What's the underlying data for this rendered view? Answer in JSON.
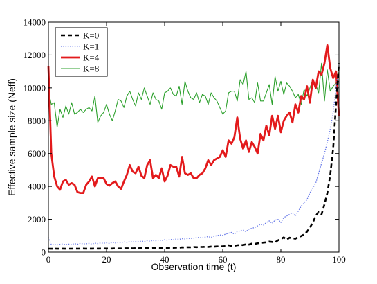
{
  "chart_data": {
    "type": "line",
    "title": "",
    "xlabel": "Observation time (t)",
    "ylabel": "Effective sample size (Neff)",
    "xlim": [
      0,
      100
    ],
    "ylim": [
      0,
      14000
    ],
    "x_ticks": [
      0,
      20,
      40,
      60,
      80,
      100
    ],
    "y_ticks": [
      0,
      2000,
      4000,
      6000,
      8000,
      10000,
      12000,
      14000
    ],
    "grid": false,
    "legend_position": "top-left",
    "series": [
      {
        "name": "K=0",
        "color": "#000000",
        "style": "dashed",
        "x": [
          0,
          1,
          2,
          3,
          4,
          5,
          6,
          7,
          8,
          9,
          10,
          11,
          12,
          13,
          14,
          15,
          16,
          17,
          18,
          19,
          20,
          21,
          22,
          23,
          24,
          25,
          26,
          27,
          28,
          29,
          30,
          31,
          32,
          33,
          34,
          35,
          36,
          37,
          38,
          39,
          40,
          41,
          42,
          43,
          44,
          45,
          46,
          47,
          48,
          49,
          50,
          51,
          52,
          53,
          54,
          55,
          56,
          57,
          58,
          59,
          60,
          61,
          62,
          63,
          64,
          65,
          66,
          67,
          68,
          69,
          70,
          71,
          72,
          73,
          74,
          75,
          76,
          77,
          78,
          79,
          80,
          81,
          82,
          83,
          84,
          85,
          86,
          87,
          88,
          89,
          90,
          91,
          92,
          93,
          94,
          95,
          96,
          97,
          98,
          99,
          100
        ],
        "values": [
          210,
          205,
          215,
          205,
          210,
          215,
          205,
          210,
          210,
          215,
          210,
          215,
          220,
          210,
          215,
          215,
          220,
          215,
          220,
          225,
          220,
          215,
          220,
          230,
          225,
          225,
          230,
          235,
          235,
          230,
          240,
          235,
          245,
          240,
          250,
          240,
          255,
          245,
          260,
          255,
          265,
          260,
          270,
          265,
          280,
          275,
          290,
          285,
          300,
          295,
          310,
          305,
          320,
          315,
          330,
          320,
          340,
          335,
          350,
          345,
          360,
          370,
          420,
          380,
          390,
          420,
          440,
          430,
          480,
          460,
          520,
          500,
          540,
          560,
          580,
          600,
          640,
          620,
          600,
          720,
          800,
          900,
          760,
          880,
          850,
          820,
          920,
          980,
          1080,
          1250,
          1500,
          1800,
          2200,
          2450,
          2300,
          2900,
          3600,
          4700,
          6300,
          9000,
          11500
        ]
      },
      {
        "name": "K=1",
        "color": "#6678e8",
        "style": "dotted",
        "x": [
          0,
          1,
          2,
          3,
          4,
          5,
          6,
          7,
          8,
          9,
          10,
          11,
          12,
          13,
          14,
          15,
          16,
          17,
          18,
          19,
          20,
          21,
          22,
          23,
          24,
          25,
          26,
          27,
          28,
          29,
          30,
          31,
          32,
          33,
          34,
          35,
          36,
          37,
          38,
          39,
          40,
          41,
          42,
          43,
          44,
          45,
          46,
          47,
          48,
          49,
          50,
          51,
          52,
          53,
          54,
          55,
          56,
          57,
          58,
          59,
          60,
          61,
          62,
          63,
          64,
          65,
          66,
          67,
          68,
          69,
          70,
          71,
          72,
          73,
          74,
          75,
          76,
          77,
          78,
          79,
          80,
          81,
          82,
          83,
          84,
          85,
          86,
          87,
          88,
          89,
          90,
          91,
          92,
          93,
          94,
          95,
          96,
          97,
          98,
          99,
          100
        ],
        "values": [
          900,
          450,
          470,
          440,
          480,
          500,
          460,
          490,
          470,
          520,
          480,
          540,
          500,
          510,
          530,
          490,
          550,
          520,
          560,
          540,
          570,
          530,
          590,
          560,
          600,
          580,
          620,
          600,
          640,
          620,
          650,
          640,
          670,
          650,
          700,
          660,
          720,
          690,
          740,
          700,
          760,
          720,
          780,
          750,
          800,
          780,
          820,
          800,
          840,
          830,
          860,
          880,
          900,
          870,
          920,
          950,
          900,
          980,
          1000,
          1050,
          1020,
          1100,
          1150,
          1200,
          1100,
          1250,
          1300,
          1350,
          1250,
          1400,
          1450,
          1500,
          1600,
          1700,
          1650,
          1800,
          1900,
          1750,
          1950,
          2000,
          1800,
          2100,
          2200,
          2300,
          2400,
          2200,
          2500,
          2800,
          3000,
          3200,
          3600,
          3900,
          4200,
          4800,
          5400,
          6000,
          6700,
          7500,
          8500,
          10000,
          11400
        ]
      },
      {
        "name": "K=4",
        "color": "#e31a1c",
        "style": "solid-thick",
        "x": [
          0,
          1,
          2,
          3,
          4,
          5,
          6,
          7,
          8,
          9,
          10,
          11,
          12,
          13,
          14,
          15,
          16,
          17,
          18,
          19,
          20,
          21,
          22,
          23,
          24,
          25,
          26,
          27,
          28,
          29,
          30,
          31,
          32,
          33,
          34,
          35,
          36,
          37,
          38,
          39,
          40,
          41,
          42,
          43,
          44,
          45,
          46,
          47,
          48,
          49,
          50,
          51,
          52,
          53,
          54,
          55,
          56,
          57,
          58,
          59,
          60,
          61,
          62,
          63,
          64,
          65,
          66,
          67,
          68,
          69,
          70,
          71,
          72,
          73,
          74,
          75,
          76,
          77,
          78,
          79,
          80,
          81,
          82,
          83,
          84,
          85,
          86,
          87,
          88,
          89,
          90,
          91,
          92,
          93,
          94,
          95,
          96,
          97,
          98,
          99,
          100
        ],
        "values": [
          11300,
          6000,
          4600,
          4000,
          3800,
          4300,
          4400,
          4100,
          4200,
          4100,
          3650,
          3600,
          3600,
          4100,
          4300,
          4600,
          4000,
          4500,
          4500,
          4500,
          4150,
          4050,
          4200,
          4300,
          4000,
          3850,
          4300,
          4700,
          5300,
          4900,
          4800,
          5200,
          4650,
          4500,
          5300,
          5600,
          4500,
          4700,
          4500,
          5100,
          4300,
          4650,
          5300,
          5200,
          5200,
          4600,
          5800,
          4800,
          4700,
          4800,
          4500,
          4500,
          4700,
          4800,
          5100,
          5600,
          5300,
          5600,
          5700,
          5800,
          6200,
          5800,
          6800,
          6600,
          7000,
          8200,
          6900,
          6300,
          6800,
          6100,
          6700,
          6400,
          6000,
          7200,
          6800,
          7700,
          7100,
          8300,
          7500,
          8300,
          7300,
          8000,
          8300,
          8500,
          7900,
          9000,
          8500,
          9500,
          9300,
          10100,
          9100,
          10500,
          10000,
          11000,
          10800,
          11500,
          12600,
          11200,
          10600,
          11000,
          8300
        ]
      },
      {
        "name": "K=8",
        "color": "#2ca02c",
        "style": "solid",
        "x": [
          0,
          1,
          2,
          3,
          4,
          5,
          6,
          7,
          8,
          9,
          10,
          11,
          12,
          13,
          14,
          15,
          16,
          17,
          18,
          19,
          20,
          21,
          22,
          23,
          24,
          25,
          26,
          27,
          28,
          29,
          30,
          31,
          32,
          33,
          34,
          35,
          36,
          37,
          38,
          39,
          40,
          41,
          42,
          43,
          44,
          45,
          46,
          47,
          48,
          49,
          50,
          51,
          52,
          53,
          54,
          55,
          56,
          57,
          58,
          59,
          60,
          61,
          62,
          63,
          64,
          65,
          66,
          67,
          68,
          69,
          70,
          71,
          72,
          73,
          74,
          75,
          76,
          77,
          78,
          79,
          80,
          81,
          82,
          83,
          84,
          85,
          86,
          87,
          88,
          89,
          90,
          91,
          92,
          93,
          94,
          95,
          96,
          97,
          98,
          99,
          100
        ],
        "values": [
          9800,
          9000,
          9100,
          7600,
          8700,
          8200,
          8900,
          8400,
          9100,
          8400,
          8500,
          8700,
          8500,
          8700,
          8800,
          8600,
          9500,
          7900,
          8300,
          8500,
          9000,
          8400,
          8000,
          8600,
          9300,
          9200,
          8800,
          9500,
          9800,
          9300,
          8900,
          9700,
          9300,
          10000,
          9500,
          9000,
          9700,
          9300,
          9200,
          8700,
          9700,
          9800,
          10000,
          9600,
          9500,
          10100,
          9000,
          10400,
          9800,
          9400,
          9300,
          9700,
          9100,
          9600,
          9500,
          9000,
          9700,
          9400,
          9200,
          8800,
          8400,
          8600,
          9700,
          9800,
          9800,
          9200,
          10500,
          10200,
          11000,
          9300,
          9400,
          9100,
          10300,
          9200,
          9200,
          9700,
          10200,
          9000,
          10700,
          9800,
          10400,
          9600,
          10300,
          10100,
          9800,
          9400,
          9600,
          9000,
          9900,
          9500,
          10000,
          10500,
          10200,
          9700,
          11500,
          9200,
          11100,
          9800,
          10100,
          10300,
          11000
        ]
      }
    ]
  }
}
